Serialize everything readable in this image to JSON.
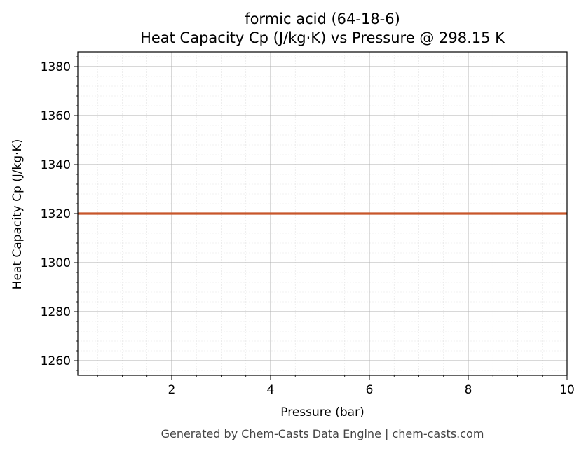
{
  "chart_data": {
    "type": "line",
    "title": "formic acid (64-18-6)",
    "subtitle": "Heat Capacity Cp (J/kg·K) vs Pressure @ 298.15 K",
    "xlabel": "Pressure (bar)",
    "ylabel": "Heat Capacity Cp (J/kg·K)",
    "xlim": [
      0.1,
      10
    ],
    "ylim": [
      1254,
      1386
    ],
    "x_major_ticks": [
      2,
      4,
      6,
      8,
      10
    ],
    "x_minor_step": 0.5,
    "y_major_ticks": [
      1260,
      1280,
      1300,
      1320,
      1340,
      1360,
      1380
    ],
    "y_minor_step": 4,
    "grid": true,
    "series": [
      {
        "color": "#c8562a",
        "x": [
          0.1,
          1,
          2,
          3,
          4,
          5,
          6,
          7,
          8,
          9,
          10
        ],
        "y": [
          1320,
          1320,
          1320,
          1320,
          1320,
          1320,
          1320,
          1320,
          1320,
          1320,
          1320
        ]
      }
    ]
  },
  "footer": "Generated by Chem-Casts Data Engine | chem-casts.com"
}
